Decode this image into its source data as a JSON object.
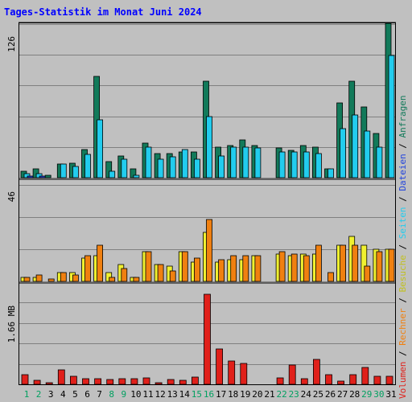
{
  "chart_data": {
    "type": "bar",
    "title": "Tages-Statistik im Monat Juni 2024",
    "weekend_days": [
      1,
      2,
      8,
      9,
      15,
      16,
      22,
      23,
      29,
      30
    ],
    "panels": [
      {
        "id": "top",
        "max_label": "126",
        "ymax": 126,
        "series": [
          {
            "name": "Anfragen",
            "color": "#127a5a",
            "values": [
              5,
              7,
              2,
              11,
              12,
              23,
              83,
              13,
              18,
              7,
              28,
              20,
              20,
              21,
              21,
              79,
              25,
              26,
              31,
              26,
              0,
              24,
              22,
              26,
              25,
              7,
              61,
              79,
              58,
              36,
              126
            ]
          },
          {
            "name": "Seiten",
            "color": "#22ccee",
            "values": [
              3,
              3,
              0,
              11,
              9,
              19,
              47,
              5,
              15,
              2,
              25,
              15,
              17,
              23,
              15,
              50,
              18,
              25,
              25,
              24,
              0,
              21,
              21,
              21,
              20,
              7,
              40,
              51,
              38,
              25,
              100
            ]
          },
          {
            "name": "Dateien",
            "color": "#2244dd",
            "values": [
              1,
              1,
              0,
              0,
              0,
              0,
              0,
              0,
              0,
              0,
              0,
              0,
              0,
              0,
              0,
              0,
              0,
              0,
              0,
              0,
              0,
              0,
              0,
              0,
              0,
              0,
              0,
              0,
              0,
              0,
              0
            ]
          }
        ]
      },
      {
        "id": "middle",
        "max_label": "46",
        "ymax": 46,
        "series": [
          {
            "name": "Besuche",
            "color": "#f0f030",
            "values": [
              2,
              2,
              0,
              4,
              4,
              11,
              12,
              4,
              8,
              2,
              14,
              8,
              7,
              14,
              9,
              23,
              9,
              10,
              10,
              12,
              0,
              13,
              12,
              13,
              13,
              0,
              17,
              21,
              17,
              15,
              15
            ]
          },
          {
            "name": "Rechner",
            "color": "#f08010",
            "values": [
              2,
              3,
              1,
              4,
              3,
              12,
              17,
              2,
              6,
              2,
              14,
              8,
              5,
              14,
              11,
              29,
              10,
              12,
              12,
              12,
              0,
              14,
              13,
              12,
              17,
              4,
              17,
              17,
              7,
              14,
              15
            ]
          }
        ]
      },
      {
        "id": "bottom",
        "max_label": "1.66 MB",
        "ymax": 1.66,
        "series": [
          {
            "name": "Volumen",
            "color": "#e0201a",
            "values": [
              0.17,
              0.07,
              0.03,
              0.24,
              0.13,
              0.1,
              0.1,
              0.08,
              0.1,
              0.09,
              0.11,
              0.03,
              0.08,
              0.07,
              0.12,
              1.53,
              0.6,
              0.4,
              0.36,
              0.0,
              0.0,
              0.11,
              0.32,
              0.1,
              0.42,
              0.16,
              0.05,
              0.16,
              0.29,
              0.13,
              0.13
            ]
          }
        ]
      }
    ],
    "x_labels": [
      "1",
      "2",
      "3",
      "4",
      "5",
      "6",
      "7",
      "8",
      "9",
      "10",
      "11",
      "12",
      "13",
      "14",
      "15",
      "16",
      "17",
      "18",
      "19",
      "20",
      "21",
      "22",
      "23",
      "24",
      "25",
      "26",
      "27",
      "28",
      "29",
      "30",
      "31"
    ],
    "side_legend": [
      {
        "text": "Anfragen",
        "color": "#127a5a"
      },
      {
        "text": "Dateien",
        "color": "#2244dd"
      },
      {
        "text": "Seiten",
        "color": "#22ccee"
      },
      {
        "text": "Besuche",
        "color": "#c0c020"
      },
      {
        "text": "Rechner",
        "color": "#f08010"
      },
      {
        "text": "Volumen",
        "color": "#e0201a"
      }
    ]
  },
  "colors": {
    "background": "#c0c0c0",
    "title": "#0000ff",
    "weekday_label": "#000000",
    "weekend_label": "#00a060",
    "separator": "#000000"
  }
}
